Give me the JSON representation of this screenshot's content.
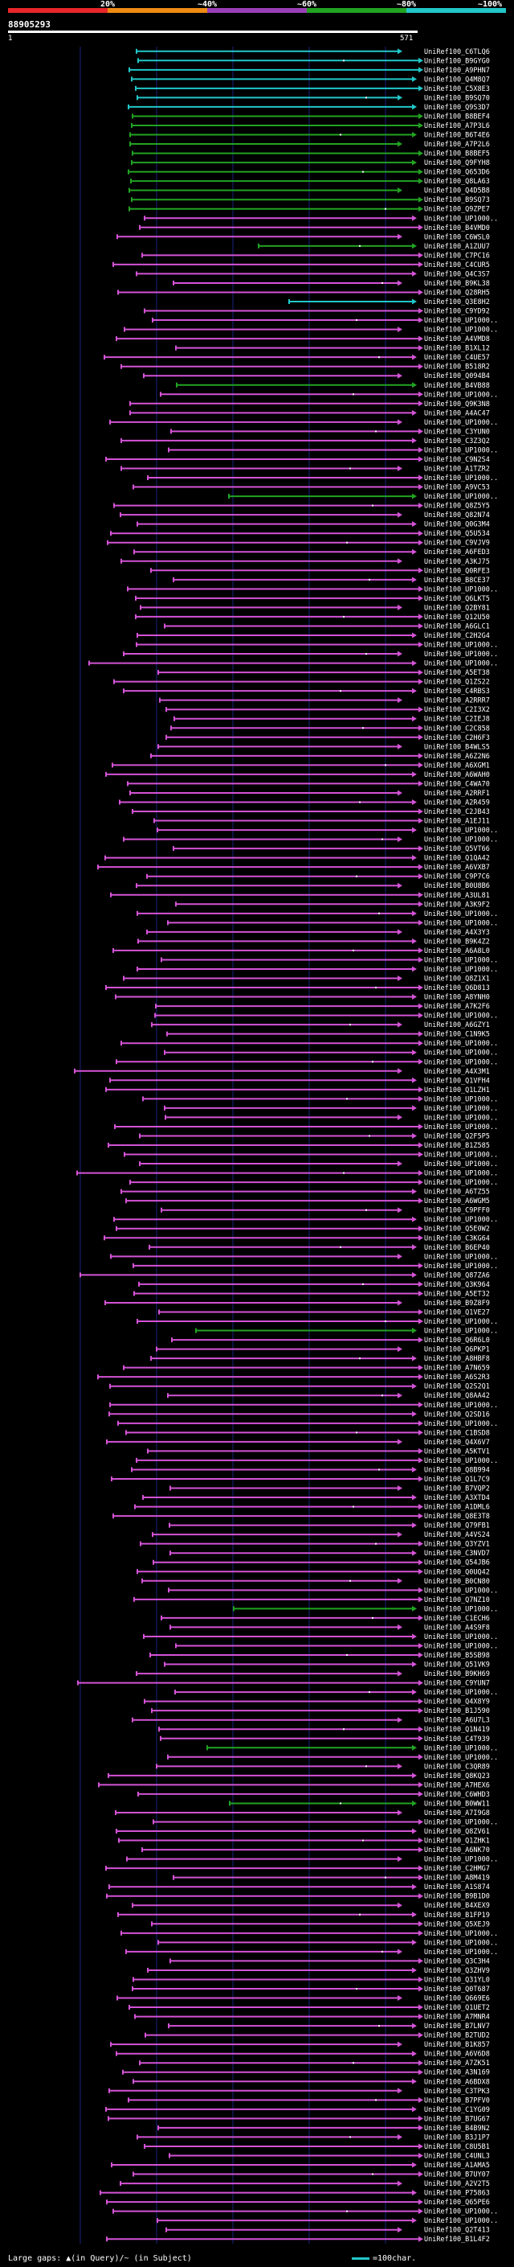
{
  "header": {
    "query_id": "88905293",
    "ruler_start": "1",
    "ruler_end": "571",
    "scale_labels": [
      "20%",
      "~40%",
      "~60%",
      "~80%",
      "~100%"
    ],
    "scale_colors": [
      "#e8262a",
      "#ee8b14",
      "#9a3fb7",
      "#22a322",
      "#22c7c9"
    ]
  },
  "colors": {
    "cyan": "#22c7c9",
    "green": "#22a322",
    "magenta": "#d453d6",
    "background": "#000000",
    "gridline": "#1a237e"
  },
  "footer": {
    "gap_text": "Large gaps: ▲(in Query)/~ (in Subject)",
    "legend_text": "=100char."
  },
  "hits": [
    {
      "label": "UniRef100_C6TLQ6",
      "color": "cyan"
    },
    {
      "label": "UniRef100_B9GYG0",
      "color": "cyan"
    },
    {
      "label": "UniRef100_A9PHN7",
      "color": "cyan"
    },
    {
      "label": "UniRef100_Q4M8Q7",
      "color": "cyan"
    },
    {
      "label": "UniRef100_C5X8E3",
      "color": "cyan"
    },
    {
      "label": "UniRef100_B9SQ70",
      "color": "cyan"
    },
    {
      "label": "UniRef100_Q9S3D7",
      "color": "cyan"
    },
    {
      "label": "UniRef100_B8BEF4",
      "color": "green"
    },
    {
      "label": "UniRef100_A7P3L6",
      "color": "green"
    },
    {
      "label": "UniRef100_B6T4E6",
      "color": "green"
    },
    {
      "label": "UniRef100_A7P2L6",
      "color": "green"
    },
    {
      "label": "UniRef100_B8BEF5",
      "color": "green"
    },
    {
      "label": "UniRef100_Q9FYH8",
      "color": "green"
    },
    {
      "label": "UniRef100_Q653D6",
      "color": "green"
    },
    {
      "label": "UniRef100_Q8LA63",
      "color": "green"
    },
    {
      "label": "UniRef100_Q4D5B8",
      "color": "green"
    },
    {
      "label": "UniRef100_B9SQ73",
      "color": "green"
    },
    {
      "label": "UniRef100_Q9ZPE7",
      "color": "green"
    },
    {
      "label": "UniRef100_UP1000..",
      "color": "magenta"
    },
    {
      "label": "UniRef100_B4VMD0",
      "color": "magenta"
    },
    {
      "label": "UniRef100_C6WSL0",
      "color": "magenta"
    },
    {
      "label": "UniRef100_A1ZUU7",
      "color": "green"
    },
    {
      "label": "UniRef100_C7PC16",
      "color": "magenta"
    },
    {
      "label": "UniRef100_C4CUR5",
      "color": "magenta"
    },
    {
      "label": "UniRef100_Q4C3S7",
      "color": "magenta"
    },
    {
      "label": "UniRef100_B9KL38",
      "color": "magenta"
    },
    {
      "label": "UniRef100_Q28RH5",
      "color": "magenta"
    },
    {
      "label": "UniRef100_Q3E8H2",
      "color": "cyan"
    },
    {
      "label": "UniRef100_C9YD92",
      "color": "magenta"
    },
    {
      "label": "UniRef100_UP1000..",
      "color": "magenta"
    },
    {
      "label": "UniRef100_UP1000..",
      "color": "magenta"
    },
    {
      "label": "UniRef100_A4VMD8",
      "color": "magenta"
    },
    {
      "label": "UniRef100_B1XL12",
      "color": "magenta"
    },
    {
      "label": "UniRef100_C4UE57",
      "color": "magenta"
    },
    {
      "label": "UniRef100_B518R2",
      "color": "magenta"
    },
    {
      "label": "UniRef100_Q094B4",
      "color": "magenta"
    },
    {
      "label": "UniRef100_B4VB88",
      "color": "green"
    },
    {
      "label": "UniRef100_UP1000..",
      "color": "magenta"
    },
    {
      "label": "UniRef100_Q9K3N8",
      "color": "magenta"
    },
    {
      "label": "UniRef100_A4AC47",
      "color": "magenta"
    },
    {
      "label": "UniRef100_UP1000..",
      "color": "magenta"
    },
    {
      "label": "UniRef100_C3YUN0",
      "color": "magenta"
    },
    {
      "label": "UniRef100_C3Z3Q2",
      "color": "magenta"
    },
    {
      "label": "UniRef100_UP1000..",
      "color": "magenta"
    },
    {
      "label": "UniRef100_C9N2S4",
      "color": "magenta"
    },
    {
      "label": "UniRef100_A1TZR2",
      "color": "magenta"
    },
    {
      "label": "UniRef100_UP1000..",
      "color": "magenta"
    },
    {
      "label": "UniRef100_A9VC53",
      "color": "magenta"
    },
    {
      "label": "UniRef100_UP1000..",
      "color": "green"
    },
    {
      "label": "UniRef100_Q8Z5Y5",
      "color": "magenta"
    },
    {
      "label": "UniRef100_Q82N74",
      "color": "magenta"
    },
    {
      "label": "UniRef100_Q0G3M4",
      "color": "magenta"
    },
    {
      "label": "UniRef100_Q5U534",
      "color": "magenta"
    },
    {
      "label": "UniRef100_C9VJV9",
      "color": "magenta"
    },
    {
      "label": "UniRef100_A6FED3",
      "color": "magenta"
    },
    {
      "label": "UniRef100_A3KJ75",
      "color": "magenta"
    },
    {
      "label": "UniRef100_Q0RFE3",
      "color": "magenta"
    },
    {
      "label": "UniRef100_B8CE37",
      "color": "magenta"
    },
    {
      "label": "UniRef100_UP1000..",
      "color": "magenta"
    },
    {
      "label": "UniRef100_Q6LKT5",
      "color": "magenta"
    },
    {
      "label": "UniRef100_Q2BY81",
      "color": "magenta"
    },
    {
      "label": "UniRef100_Q12U50",
      "color": "magenta"
    },
    {
      "label": "UniRef100_A6GLC1",
      "color": "magenta"
    },
    {
      "label": "UniRef100_C2H2G4",
      "color": "magenta"
    },
    {
      "label": "UniRef100_UP1000..",
      "color": "magenta"
    },
    {
      "label": "UniRef100_UP1000..",
      "color": "magenta"
    },
    {
      "label": "UniRef100_UP1000..",
      "color": "magenta"
    },
    {
      "label": "UniRef100_A5ET38",
      "color": "magenta"
    },
    {
      "label": "UniRef100_Q1ZS22",
      "color": "magenta"
    },
    {
      "label": "UniRef100_C4RBS3",
      "color": "magenta"
    },
    {
      "label": "UniRef100_A2RRR7",
      "color": "magenta"
    },
    {
      "label": "UniRef100_C2I3X2",
      "color": "magenta"
    },
    {
      "label": "UniRef100_C2IEJ8",
      "color": "magenta"
    },
    {
      "label": "UniRef100_C2C858",
      "color": "magenta"
    },
    {
      "label": "UniRef100_C2H6F3",
      "color": "magenta"
    },
    {
      "label": "UniRef100_B4WLS5",
      "color": "magenta"
    },
    {
      "label": "UniRef100_A6Z2N6",
      "color": "magenta"
    },
    {
      "label": "UniRef100_A6XGM1",
      "color": "magenta"
    },
    {
      "label": "UniRef100_A6WAH0",
      "color": "magenta"
    },
    {
      "label": "UniRef100_C4WA70",
      "color": "magenta"
    },
    {
      "label": "UniRef100_A2RRF1",
      "color": "magenta"
    },
    {
      "label": "UniRef100_A2R459",
      "color": "magenta"
    },
    {
      "label": "UniRef100_C2JB43",
      "color": "magenta"
    },
    {
      "label": "UniRef100_A1EJ11",
      "color": "magenta"
    },
    {
      "label": "UniRef100_UP1000..",
      "color": "magenta"
    },
    {
      "label": "UniRef100_UP1000..",
      "color": "magenta"
    },
    {
      "label": "UniRef100_Q5VT66",
      "color": "magenta"
    },
    {
      "label": "UniRef100_Q1QA42",
      "color": "magenta"
    },
    {
      "label": "UniRef100_A6VXB7",
      "color": "magenta"
    },
    {
      "label": "UniRef100_C9P7C6",
      "color": "magenta"
    },
    {
      "label": "UniRef100_B0U8B6",
      "color": "magenta"
    },
    {
      "label": "UniRef100_A3UL81",
      "color": "magenta"
    },
    {
      "label": "UniRef100_A3K9F2",
      "color": "magenta"
    },
    {
      "label": "UniRef100_UP1000..",
      "color": "magenta"
    },
    {
      "label": "UniRef100_UP1000..",
      "color": "magenta"
    },
    {
      "label": "UniRef100_A4X3Y3",
      "color": "magenta"
    },
    {
      "label": "UniRef100_B9K4Z2",
      "color": "magenta"
    },
    {
      "label": "UniRef100_A6A8L0",
      "color": "magenta"
    },
    {
      "label": "UniRef100_UP1000..",
      "color": "magenta"
    },
    {
      "label": "UniRef100_UP1000..",
      "color": "magenta"
    },
    {
      "label": "UniRef100_Q8Z1X1",
      "color": "magenta"
    },
    {
      "label": "UniRef100_Q6D813",
      "color": "magenta"
    },
    {
      "label": "UniRef100_A8YNH0",
      "color": "magenta"
    },
    {
      "label": "UniRef100_A7K2F6",
      "color": "magenta"
    },
    {
      "label": "UniRef100_UP1000..",
      "color": "magenta"
    },
    {
      "label": "UniRef100_A6GZY1",
      "color": "magenta"
    },
    {
      "label": "UniRef100_C1N9K5",
      "color": "magenta"
    },
    {
      "label": "UniRef100_UP1000..",
      "color": "magenta"
    },
    {
      "label": "UniRef100_UP1000..",
      "color": "magenta"
    },
    {
      "label": "UniRef100_UP1000..",
      "color": "magenta"
    },
    {
      "label": "UniRef100_A4X3M1",
      "color": "magenta"
    },
    {
      "label": "UniRef100_Q1VFH4",
      "color": "magenta"
    },
    {
      "label": "UniRef100_Q1LZH1",
      "color": "magenta"
    },
    {
      "label": "UniRef100_UP1000..",
      "color": "magenta"
    },
    {
      "label": "UniRef100_UP1000..",
      "color": "magenta"
    },
    {
      "label": "UniRef100_UP1000..",
      "color": "magenta"
    },
    {
      "label": "UniRef100_UP1000..",
      "color": "magenta"
    },
    {
      "label": "UniRef100_Q2F5P5",
      "color": "magenta"
    },
    {
      "label": "UniRef100_B1Z585",
      "color": "magenta"
    },
    {
      "label": "UniRef100_UP1000..",
      "color": "magenta"
    },
    {
      "label": "UniRef100_UP1000..",
      "color": "magenta"
    },
    {
      "label": "UniRef100_UP1000..",
      "color": "magenta"
    },
    {
      "label": "UniRef100_UP1000..",
      "color": "magenta"
    },
    {
      "label": "UniRef100_A6TZ55",
      "color": "magenta"
    },
    {
      "label": "UniRef100_A6WGM5",
      "color": "magenta"
    },
    {
      "label": "UniRef100_C9PFF0",
      "color": "magenta"
    },
    {
      "label": "UniRef100_UP1000..",
      "color": "magenta"
    },
    {
      "label": "UniRef100_Q5E0W2",
      "color": "magenta"
    },
    {
      "label": "UniRef100_C3KG64",
      "color": "magenta"
    },
    {
      "label": "UniRef100_B6EP40",
      "color": "magenta"
    },
    {
      "label": "UniRef100_UP1000..",
      "color": "magenta"
    },
    {
      "label": "UniRef100_UP1000..",
      "color": "magenta"
    },
    {
      "label": "UniRef100_Q87ZA6",
      "color": "magenta"
    },
    {
      "label": "UniRef100_Q3K964",
      "color": "magenta"
    },
    {
      "label": "UniRef100_A5ET32",
      "color": "magenta"
    },
    {
      "label": "UniRef100_B9Z8F9",
      "color": "magenta"
    },
    {
      "label": "UniRef100_Q1VE27",
      "color": "magenta"
    },
    {
      "label": "UniRef100_UP1000..",
      "color": "magenta"
    },
    {
      "label": "UniRef100_UP1000..",
      "color": "green"
    },
    {
      "label": "UniRef100_Q6R6L0",
      "color": "magenta"
    },
    {
      "label": "UniRef100_Q6PKP1",
      "color": "magenta"
    },
    {
      "label": "UniRef100_A8HBF8",
      "color": "magenta"
    },
    {
      "label": "UniRef100_A7N659",
      "color": "magenta"
    },
    {
      "label": "UniRef100_A6S2R3",
      "color": "magenta"
    },
    {
      "label": "UniRef100_Q2S2Q1",
      "color": "magenta"
    },
    {
      "label": "UniRef100_Q8AA42",
      "color": "magenta"
    },
    {
      "label": "UniRef100_UP1000..",
      "color": "magenta"
    },
    {
      "label": "UniRef100_Q2SD16",
      "color": "magenta"
    },
    {
      "label": "UniRef100_UP1000..",
      "color": "magenta"
    },
    {
      "label": "UniRef100_C1BSD8",
      "color": "magenta"
    },
    {
      "label": "UniRef100_Q4X6V7",
      "color": "magenta"
    },
    {
      "label": "UniRef100_A5KTV1",
      "color": "magenta"
    },
    {
      "label": "UniRef100_UP1000..",
      "color": "magenta"
    },
    {
      "label": "UniRef100_Q8B994",
      "color": "magenta"
    },
    {
      "label": "UniRef100_Q1L7C9",
      "color": "magenta"
    },
    {
      "label": "UniRef100_B7VQP2",
      "color": "magenta"
    },
    {
      "label": "UniRef100_A3XTD4",
      "color": "magenta"
    },
    {
      "label": "UniRef100_A1DML6",
      "color": "magenta"
    },
    {
      "label": "UniRef100_Q8E3T8",
      "color": "magenta"
    },
    {
      "label": "UniRef100_Q79FB1",
      "color": "magenta"
    },
    {
      "label": "UniRef100_A4VS24",
      "color": "magenta"
    },
    {
      "label": "UniRef100_Q3YZV1",
      "color": "magenta"
    },
    {
      "label": "UniRef100_C3NVD7",
      "color": "magenta"
    },
    {
      "label": "UniRef100_Q54JB6",
      "color": "magenta"
    },
    {
      "label": "UniRef100_Q0UQ42",
      "color": "magenta"
    },
    {
      "label": "UniRef100_B0CN80",
      "color": "magenta"
    },
    {
      "label": "UniRef100_UP1000..",
      "color": "magenta"
    },
    {
      "label": "UniRef100_Q7NZ10",
      "color": "magenta"
    },
    {
      "label": "UniRef100_UP1000..",
      "color": "green"
    },
    {
      "label": "UniRef100_C1ECH6",
      "color": "magenta"
    },
    {
      "label": "UniRef100_A4S9F8",
      "color": "magenta"
    },
    {
      "label": "UniRef100_UP1000..",
      "color": "magenta"
    },
    {
      "label": "UniRef100_UP1000..",
      "color": "magenta"
    },
    {
      "label": "UniRef100_B5SB98",
      "color": "magenta"
    },
    {
      "label": "UniRef100_Q51VK9",
      "color": "magenta"
    },
    {
      "label": "UniRef100_B9KH69",
      "color": "magenta"
    },
    {
      "label": "UniRef100_C9YUN7",
      "color": "magenta"
    },
    {
      "label": "UniRef100_UP1000..",
      "color": "magenta"
    },
    {
      "label": "UniRef100_Q4X8Y9",
      "color": "magenta"
    },
    {
      "label": "UniRef100_B1J590",
      "color": "magenta"
    },
    {
      "label": "UniRef100_A6U7L3",
      "color": "magenta"
    },
    {
      "label": "UniRef100_Q1N419",
      "color": "magenta"
    },
    {
      "label": "UniRef100_C4T939",
      "color": "magenta"
    },
    {
      "label": "UniRef100_UP1000..",
      "color": "green"
    },
    {
      "label": "UniRef100_UP1000..",
      "color": "magenta"
    },
    {
      "label": "UniRef100_C3QR89",
      "color": "magenta"
    },
    {
      "label": "UniRef100_Q8KQ23",
      "color": "magenta"
    },
    {
      "label": "UniRef100_A7HEX6",
      "color": "magenta"
    },
    {
      "label": "UniRef100_C6WHD3",
      "color": "magenta"
    },
    {
      "label": "UniRef100_B0WW11",
      "color": "green"
    },
    {
      "label": "UniRef100_A7I9G8",
      "color": "magenta"
    },
    {
      "label": "UniRef100_UP1000..",
      "color": "magenta"
    },
    {
      "label": "UniRef100_Q8ZV61",
      "color": "magenta"
    },
    {
      "label": "UniRef100_Q1ZHK1",
      "color": "magenta"
    },
    {
      "label": "UniRef100_A6NK70",
      "color": "magenta"
    },
    {
      "label": "UniRef100_UP1000..",
      "color": "magenta"
    },
    {
      "label": "UniRef100_C2HMG7",
      "color": "magenta"
    },
    {
      "label": "UniRef100_A8M419",
      "color": "magenta"
    },
    {
      "label": "UniRef100_A1S874",
      "color": "magenta"
    },
    {
      "label": "UniRef100_B9B1D0",
      "color": "magenta"
    },
    {
      "label": "UniRef100_B4XEX9",
      "color": "magenta"
    },
    {
      "label": "UniRef100_B1FP19",
      "color": "magenta"
    },
    {
      "label": "UniRef100_Q5XEJ9",
      "color": "magenta"
    },
    {
      "label": "UniRef100_UP1000..",
      "color": "magenta"
    },
    {
      "label": "UniRef100_UP1000..",
      "color": "magenta"
    },
    {
      "label": "UniRef100_UP1000..",
      "color": "magenta"
    },
    {
      "label": "UniRef100_Q3C3H4",
      "color": "magenta"
    },
    {
      "label": "UniRef100_Q3ZHV9",
      "color": "magenta"
    },
    {
      "label": "UniRef100_Q31YL0",
      "color": "magenta"
    },
    {
      "label": "UniRef100_Q0T687",
      "color": "magenta"
    },
    {
      "label": "UniRef100_Q669E6",
      "color": "magenta"
    },
    {
      "label": "UniRef100_Q1UET2",
      "color": "magenta"
    },
    {
      "label": "UniRef100_A7MNR4",
      "color": "magenta"
    },
    {
      "label": "UniRef100_B7LNV7",
      "color": "magenta"
    },
    {
      "label": "UniRef100_B2TUD2",
      "color": "magenta"
    },
    {
      "label": "UniRef100_B1K857",
      "color": "magenta"
    },
    {
      "label": "UniRef100_A6V6D8",
      "color": "magenta"
    },
    {
      "label": "UniRef100_A7ZK51",
      "color": "magenta"
    },
    {
      "label": "UniRef100_A3N169",
      "color": "magenta"
    },
    {
      "label": "UniRef100_A6BDX8",
      "color": "magenta"
    },
    {
      "label": "UniRef100_C3TPK3",
      "color": "magenta"
    },
    {
      "label": "UniRef100_B7PFV0",
      "color": "magenta"
    },
    {
      "label": "UniRef100_C1YG09",
      "color": "magenta"
    },
    {
      "label": "UniRef100_B7UG67",
      "color": "magenta"
    },
    {
      "label": "UniRef100_B4B9N2",
      "color": "magenta"
    },
    {
      "label": "UniRef100_B3J1P7",
      "color": "magenta"
    },
    {
      "label": "UniRef100_C8U5B1",
      "color": "magenta"
    },
    {
      "label": "UniRef100_C4UNL3",
      "color": "magenta"
    },
    {
      "label": "UniRef100_A1AMA5",
      "color": "magenta"
    },
    {
      "label": "UniRef100_B7UY07",
      "color": "magenta"
    },
    {
      "label": "UniRef100_A2V2T5",
      "color": "magenta"
    },
    {
      "label": "UniRef100_P75863",
      "color": "magenta"
    },
    {
      "label": "UniRef100_Q65PE6",
      "color": "magenta"
    },
    {
      "label": "UniRef100_UP1000..",
      "color": "magenta"
    },
    {
      "label": "UniRef100_UP1000..",
      "color": "magenta"
    },
    {
      "label": "UniRef100_Q2T413",
      "color": "magenta"
    },
    {
      "label": "UniRef100_B1L4F2",
      "color": "magenta"
    }
  ]
}
